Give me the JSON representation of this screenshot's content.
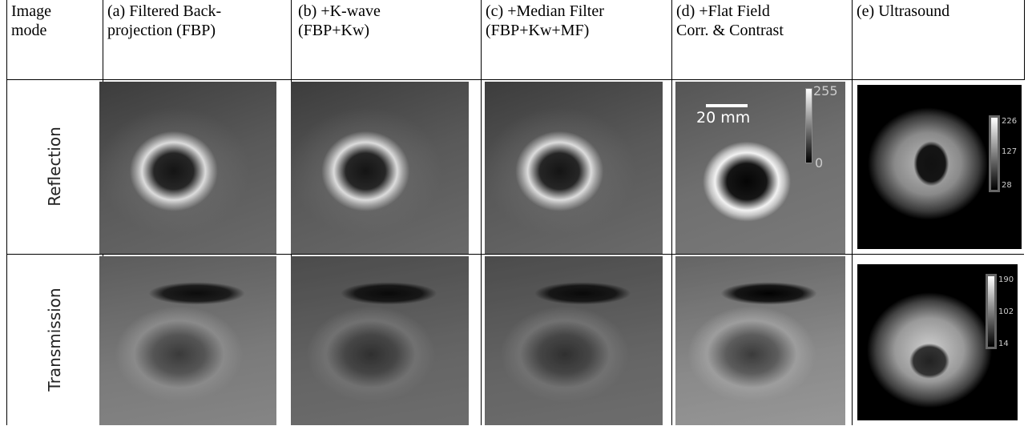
{
  "table": {
    "header": [
      "Image mode",
      "(a) Filtered Back-projection (FBP)",
      "(b) +K-wave (FBP+Kw)",
      "(c) +Median Filter (FBP+Kw+MF)",
      "(d) +Flat Field Corr. & Contrast",
      "(e) Ultrasound"
    ],
    "rows": [
      {
        "label": "Reflection"
      },
      {
        "label": "Transmission"
      }
    ]
  },
  "annotations": {
    "scale_bar": "20 mm",
    "colorbar_d": [
      "255",
      "0"
    ],
    "colorbar_e_reflection": [
      "226",
      "127",
      "28"
    ],
    "colorbar_e_transmission": [
      "190",
      "102",
      "14"
    ]
  }
}
